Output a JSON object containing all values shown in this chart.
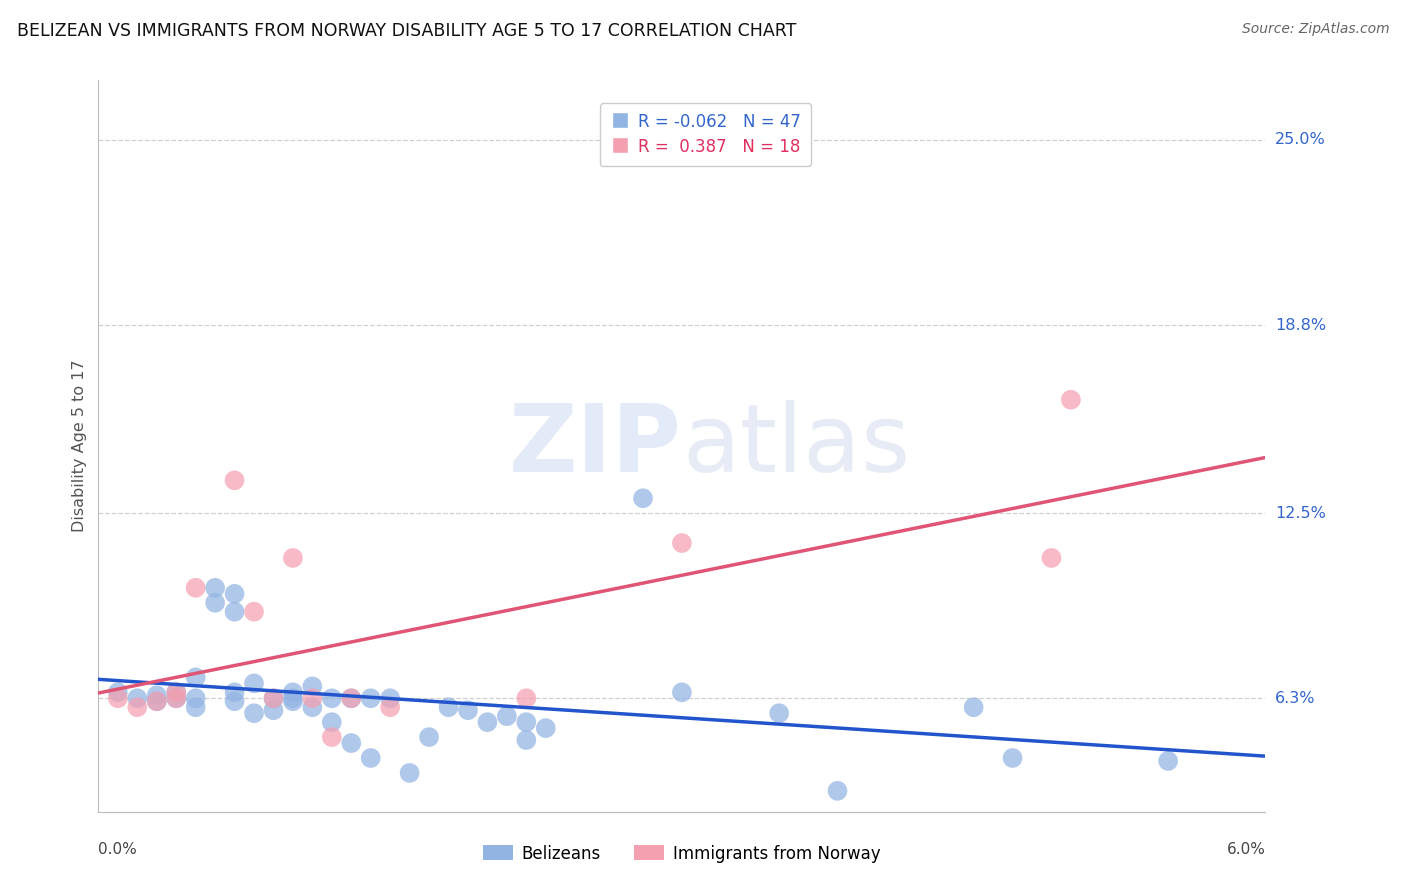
{
  "title": "BELIZEAN VS IMMIGRANTS FROM NORWAY DISABILITY AGE 5 TO 17 CORRELATION CHART",
  "source": "Source: ZipAtlas.com",
  "ylabel": "Disability Age 5 to 17",
  "ytick_labels": [
    "6.3%",
    "12.5%",
    "18.8%",
    "25.0%"
  ],
  "ytick_values": [
    0.063,
    0.125,
    0.188,
    0.25
  ],
  "xlim": [
    0.0,
    0.06
  ],
  "ylim": [
    0.025,
    0.27
  ],
  "legend_label1": "Belizeans",
  "legend_label2": "Immigrants from Norway",
  "R1": -0.062,
  "N1": 47,
  "R2": 0.387,
  "N2": 18,
  "color_blue": "#92b4e3",
  "color_pink": "#f4a0b0",
  "line_blue": "#2255cc",
  "line_pink": "#e05575",
  "watermark_top": "ZIP",
  "watermark_bot": "atlas",
  "blue_points": [
    [
      0.001,
      0.065
    ],
    [
      0.002,
      0.063
    ],
    [
      0.003,
      0.064
    ],
    [
      0.003,
      0.062
    ],
    [
      0.004,
      0.063
    ],
    [
      0.004,
      0.065
    ],
    [
      0.005,
      0.06
    ],
    [
      0.005,
      0.07
    ],
    [
      0.005,
      0.063
    ],
    [
      0.006,
      0.1
    ],
    [
      0.006,
      0.095
    ],
    [
      0.007,
      0.098
    ],
    [
      0.007,
      0.092
    ],
    [
      0.007,
      0.065
    ],
    [
      0.007,
      0.062
    ],
    [
      0.008,
      0.058
    ],
    [
      0.008,
      0.068
    ],
    [
      0.009,
      0.063
    ],
    [
      0.009,
      0.059
    ],
    [
      0.01,
      0.063
    ],
    [
      0.01,
      0.065
    ],
    [
      0.01,
      0.062
    ],
    [
      0.011,
      0.06
    ],
    [
      0.011,
      0.067
    ],
    [
      0.012,
      0.063
    ],
    [
      0.012,
      0.055
    ],
    [
      0.013,
      0.048
    ],
    [
      0.013,
      0.063
    ],
    [
      0.014,
      0.043
    ],
    [
      0.014,
      0.063
    ],
    [
      0.015,
      0.063
    ],
    [
      0.016,
      0.038
    ],
    [
      0.017,
      0.05
    ],
    [
      0.018,
      0.06
    ],
    [
      0.019,
      0.059
    ],
    [
      0.02,
      0.055
    ],
    [
      0.021,
      0.057
    ],
    [
      0.022,
      0.055
    ],
    [
      0.022,
      0.049
    ],
    [
      0.023,
      0.053
    ],
    [
      0.028,
      0.13
    ],
    [
      0.03,
      0.065
    ],
    [
      0.035,
      0.058
    ],
    [
      0.038,
      0.032
    ],
    [
      0.045,
      0.06
    ],
    [
      0.047,
      0.043
    ],
    [
      0.055,
      0.042
    ]
  ],
  "pink_points": [
    [
      0.001,
      0.063
    ],
    [
      0.002,
      0.06
    ],
    [
      0.003,
      0.062
    ],
    [
      0.004,
      0.063
    ],
    [
      0.004,
      0.065
    ],
    [
      0.005,
      0.1
    ],
    [
      0.007,
      0.136
    ],
    [
      0.008,
      0.092
    ],
    [
      0.009,
      0.063
    ],
    [
      0.01,
      0.11
    ],
    [
      0.011,
      0.063
    ],
    [
      0.012,
      0.05
    ],
    [
      0.013,
      0.063
    ],
    [
      0.015,
      0.06
    ],
    [
      0.022,
      0.063
    ],
    [
      0.03,
      0.115
    ],
    [
      0.049,
      0.11
    ],
    [
      0.05,
      0.163
    ]
  ]
}
